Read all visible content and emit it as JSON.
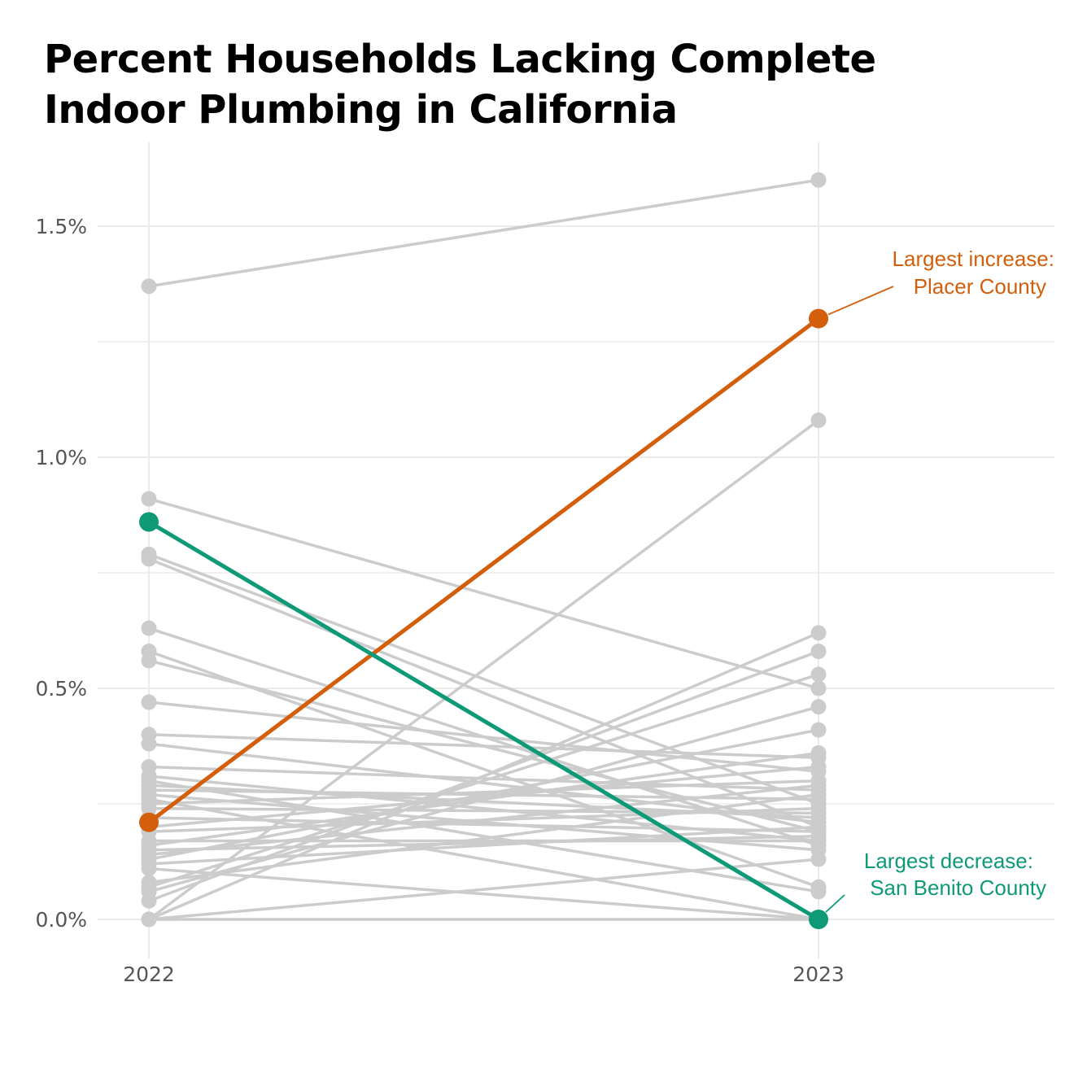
{
  "colors": {
    "increase": "#D35F0C",
    "decrease": "#0E9A76",
    "other": "#CCCCCC",
    "grid": "#EBEBEB",
    "axis_text": "#555555"
  },
  "chart_data": {
    "type": "line",
    "subtype": "slope",
    "title_lines": [
      "Percent Households Lacking Complete",
      "Indoor Plumbing in California"
    ],
    "title": "Percent Households Lacking Complete Indoor Plumbing in California",
    "xlabel": "",
    "ylabel": "",
    "x": [
      "2022",
      "2023"
    ],
    "ylim": [
      -0.08,
      1.68
    ],
    "y_ticks": [
      0,
      0.5,
      1.0,
      1.5
    ],
    "y_tick_labels": [
      "0.0%",
      "0.5%",
      "1.0%",
      "1.5%"
    ],
    "grid": true,
    "highlight": [
      {
        "name": "Placer County",
        "role": "increase",
        "values": [
          0.21,
          1.3
        ],
        "label_line1": "Largest increase:",
        "label_line2": "Placer County"
      },
      {
        "name": "San Benito County",
        "role": "decrease",
        "values": [
          0.86,
          0.0
        ],
        "label_line1": "Largest decrease:",
        "label_line2": "San Benito County"
      }
    ],
    "series": [
      {
        "values": [
          1.37,
          1.6
        ]
      },
      {
        "values": [
          0.91,
          0.5
        ]
      },
      {
        "values": [
          0.79,
          0.25
        ]
      },
      {
        "values": [
          0.78,
          0.2
        ]
      },
      {
        "values": [
          0.63,
          0.16
        ]
      },
      {
        "values": [
          0.58,
          0.07
        ]
      },
      {
        "values": [
          0.56,
          0.19
        ]
      },
      {
        "values": [
          0.47,
          0.32
        ]
      },
      {
        "values": [
          0.4,
          0.35
        ]
      },
      {
        "values": [
          0.38,
          0.21
        ]
      },
      {
        "values": [
          0.33,
          0.28
        ]
      },
      {
        "values": [
          0.31,
          0.17
        ]
      },
      {
        "values": [
          0.29,
          0.22
        ]
      },
      {
        "values": [
          0.28,
          0.26
        ]
      },
      {
        "values": [
          0.27,
          0.15
        ]
      },
      {
        "values": [
          0.25,
          0.3
        ]
      },
      {
        "values": [
          0.24,
          0.23
        ]
      },
      {
        "values": [
          0.22,
          0.19
        ]
      },
      {
        "values": [
          0.2,
          0.33
        ]
      },
      {
        "values": [
          0.19,
          0.24
        ]
      },
      {
        "values": [
          0.17,
          0.17
        ]
      },
      {
        "values": [
          0.16,
          0.36
        ]
      },
      {
        "values": [
          0.15,
          0.18
        ]
      },
      {
        "values": [
          0.14,
          0.29
        ]
      },
      {
        "values": [
          0.13,
          0.41
        ]
      },
      {
        "values": [
          0.12,
          0.2
        ]
      },
      {
        "values": [
          0.08,
          0.27
        ]
      },
      {
        "values": [
          0.07,
          0.53
        ]
      },
      {
        "values": [
          0.06,
          0.46
        ]
      },
      {
        "values": [
          0.04,
          0.58
        ]
      },
      {
        "values": [
          0.0,
          1.08
        ]
      },
      {
        "values": [
          0.0,
          0.62
        ]
      },
      {
        "values": [
          0.0,
          0.13
        ]
      },
      {
        "values": [
          0.0,
          0.0
        ]
      },
      {
        "values": [
          0.3,
          0.06
        ]
      },
      {
        "values": [
          0.26,
          0.0
        ]
      },
      {
        "values": [
          0.11,
          0.0
        ]
      }
    ]
  }
}
